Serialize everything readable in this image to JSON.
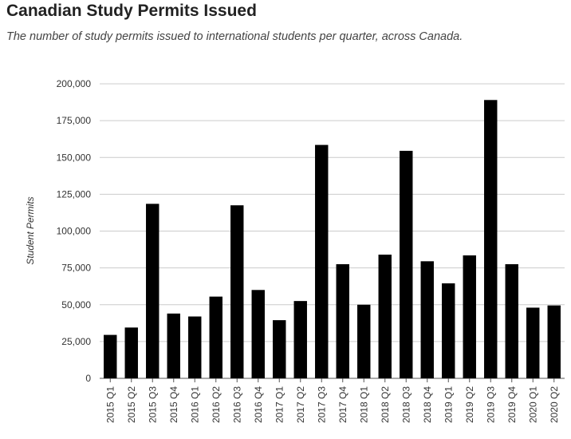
{
  "chart_data": {
    "type": "bar",
    "title": "Canadian Study Permits Issued",
    "subtitle": "The number of study permits issued to international students per quarter, across Canada.",
    "xlabel": "",
    "ylabel": "Student Permits",
    "ylim": [
      0,
      200000
    ],
    "yticks": [
      0,
      25000,
      50000,
      75000,
      100000,
      125000,
      150000,
      175000,
      200000
    ],
    "ytick_labels": [
      "0",
      "25,000",
      "50,000",
      "75,000",
      "100,000",
      "125,000",
      "150,000",
      "175,000",
      "200,000"
    ],
    "grid": true,
    "legend": "none",
    "bar_color": "#000000",
    "categories": [
      "2015 Q1",
      "2015 Q2",
      "2015 Q3",
      "2015 Q4",
      "2016 Q1",
      "2016 Q2",
      "2016 Q3",
      "2016 Q4",
      "2017 Q1",
      "2017 Q2",
      "2017 Q3",
      "2017 Q4",
      "2018 Q1",
      "2018 Q2",
      "2018 Q3",
      "2018 Q4",
      "2019 Q1",
      "2019 Q2",
      "2019 Q3",
      "2019 Q4",
      "2020 Q1",
      "2020 Q2"
    ],
    "values": [
      29500,
      34500,
      118500,
      44000,
      42000,
      55500,
      117500,
      60000,
      39500,
      52500,
      158500,
      77500,
      50000,
      84000,
      154500,
      79500,
      64500,
      83500,
      189000,
      77500,
      48000,
      49500
    ]
  }
}
